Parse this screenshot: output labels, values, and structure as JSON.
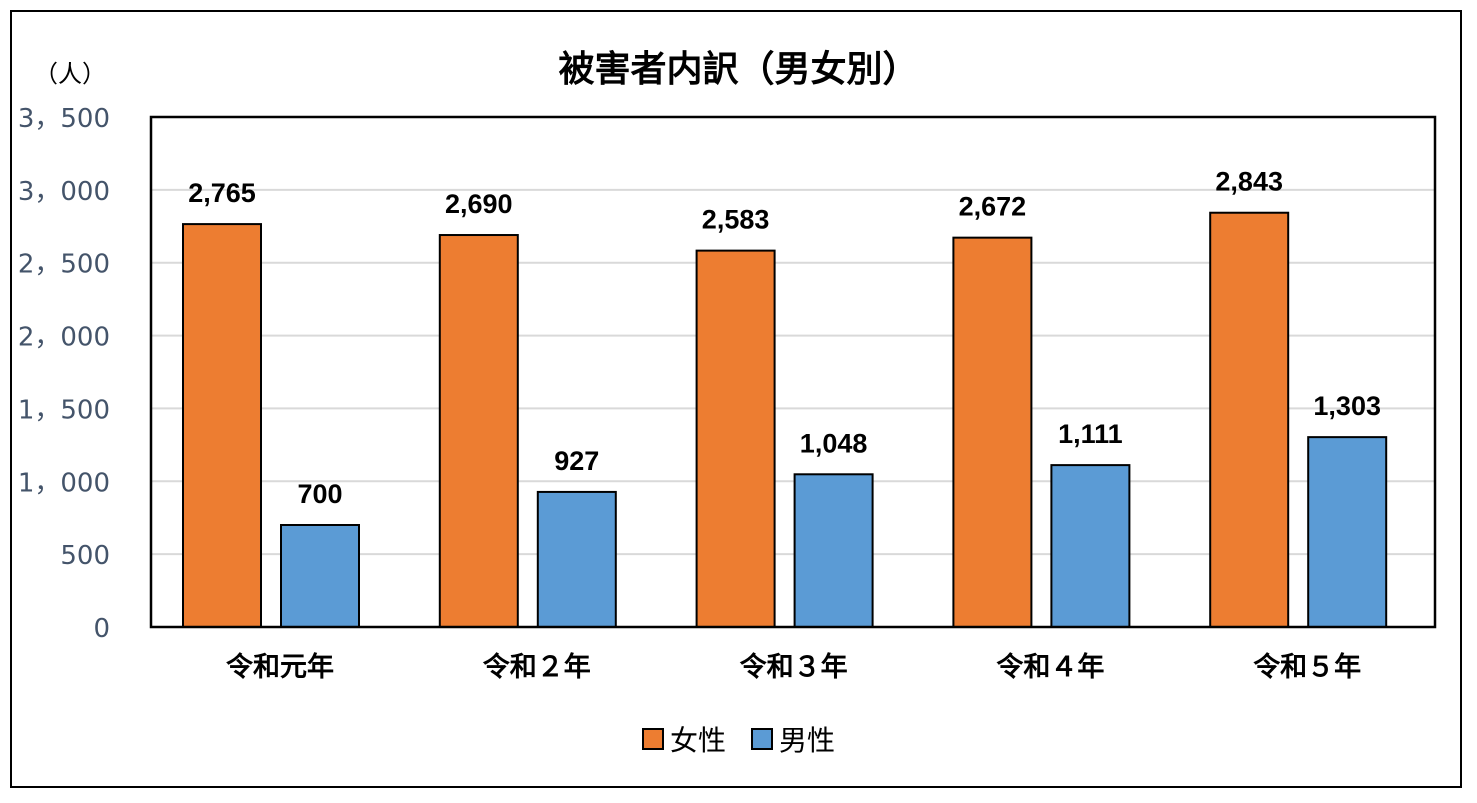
{
  "chart_data": {
    "type": "bar",
    "title": "被害者内訳（男女別）",
    "ylabel": "（人）",
    "xlabel": "",
    "categories": [
      "令和元年",
      "令和２年",
      "令和３年",
      "令和４年",
      "令和５年"
    ],
    "series": [
      {
        "name": "女性",
        "values": [
          2765,
          2690,
          2583,
          2672,
          2843
        ],
        "color": "#ed7d31"
      },
      {
        "name": "男性",
        "values": [
          700,
          927,
          1048,
          1111,
          1303
        ],
        "color": "#5b9bd5"
      }
    ],
    "data_labels": {
      "女性": [
        "2,765",
        "2,690",
        "2,583",
        "2,672",
        "2,843"
      ],
      "男性": [
        "700",
        "927",
        "1,048",
        "1,111",
        "1,303"
      ]
    },
    "yticks": [
      0,
      500,
      1000,
      1500,
      2000,
      2500,
      3000,
      3500
    ],
    "ytick_labels": [
      "0",
      "500",
      "1，000",
      "1，500",
      "2，000",
      "2，500",
      "3，000",
      "3，500"
    ],
    "ylim": [
      0,
      3500
    ],
    "grid": true,
    "legend": "bottom"
  }
}
